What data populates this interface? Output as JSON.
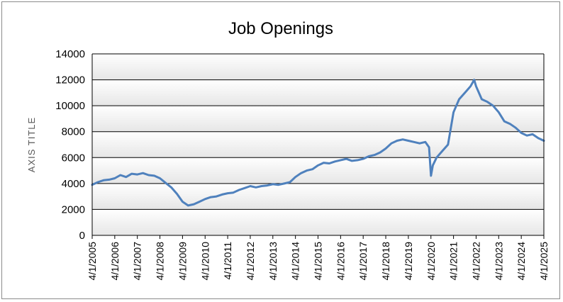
{
  "chart_data": {
    "type": "line",
    "title": "Job Openings",
    "ylabel": "AXIS TITLE",
    "xlabel": "",
    "xlim": [
      "2005-04-01",
      "2025-04-01"
    ],
    "ylim": [
      0,
      14000
    ],
    "yticks": [
      0,
      2000,
      4000,
      6000,
      8000,
      10000,
      12000,
      14000
    ],
    "ytick_labels": [
      "0",
      "2000",
      "4000",
      "6000",
      "8000",
      "10000",
      "12000",
      "14000"
    ],
    "xtick_labels": [
      "4/1/2005",
      "4/1/2006",
      "4/1/2007",
      "4/1/2008",
      "4/1/2009",
      "4/1/2010",
      "4/1/2011",
      "4/1/2012",
      "4/1/2013",
      "4/1/2014",
      "4/1/2015",
      "4/1/2016",
      "4/1/2017",
      "4/1/2018",
      "4/1/2019",
      "4/1/2020",
      "4/1/2021",
      "4/1/2022",
      "4/1/2023",
      "4/1/2024",
      "4/1/2025"
    ],
    "grid": true,
    "legend": "none",
    "series": [
      {
        "color": "#4f81bd",
        "x": [
          "2005-04-01",
          "2005-07-01",
          "2005-10-01",
          "2006-01-01",
          "2006-04-01",
          "2006-07-01",
          "2006-10-01",
          "2007-01-01",
          "2007-04-01",
          "2007-07-01",
          "2007-10-01",
          "2008-01-01",
          "2008-04-01",
          "2008-07-01",
          "2008-10-01",
          "2009-01-01",
          "2009-04-01",
          "2009-07-01",
          "2009-10-01",
          "2010-01-01",
          "2010-04-01",
          "2010-07-01",
          "2010-10-01",
          "2011-01-01",
          "2011-04-01",
          "2011-07-01",
          "2011-10-01",
          "2012-01-01",
          "2012-04-01",
          "2012-07-01",
          "2012-10-01",
          "2013-01-01",
          "2013-04-01",
          "2013-07-01",
          "2013-10-01",
          "2014-01-01",
          "2014-04-01",
          "2014-07-01",
          "2014-10-01",
          "2015-01-01",
          "2015-04-01",
          "2015-07-01",
          "2015-10-01",
          "2016-01-01",
          "2016-04-01",
          "2016-07-01",
          "2016-10-01",
          "2017-01-01",
          "2017-04-01",
          "2017-07-01",
          "2017-10-01",
          "2018-01-01",
          "2018-04-01",
          "2018-07-01",
          "2018-10-01",
          "2019-01-01",
          "2019-04-01",
          "2019-07-01",
          "2019-10-01",
          "2020-01-01",
          "2020-03-01",
          "2020-04-01",
          "2020-05-01",
          "2020-07-01",
          "2020-10-01",
          "2021-01-01",
          "2021-04-01",
          "2021-07-01",
          "2021-10-01",
          "2022-01-01",
          "2022-03-01",
          "2022-04-01",
          "2022-07-01",
          "2022-10-01",
          "2023-01-01",
          "2023-04-01",
          "2023-07-01",
          "2023-10-01",
          "2024-01-01",
          "2024-04-01",
          "2024-07-01",
          "2024-10-01",
          "2025-01-01",
          "2025-04-01"
        ],
        "y": [
          3900,
          4100,
          4250,
          4300,
          4400,
          4650,
          4500,
          4750,
          4700,
          4800,
          4650,
          4600,
          4400,
          4050,
          3700,
          3200,
          2600,
          2300,
          2400,
          2600,
          2800,
          2950,
          3000,
          3150,
          3250,
          3300,
          3500,
          3650,
          3800,
          3700,
          3800,
          3850,
          3950,
          3900,
          4000,
          4100,
          4500,
          4800,
          5000,
          5100,
          5400,
          5600,
          5550,
          5700,
          5800,
          5900,
          5750,
          5800,
          5900,
          6100,
          6200,
          6400,
          6700,
          7100,
          7300,
          7400,
          7300,
          7200,
          7100,
          7200,
          6800,
          4600,
          5400,
          6000,
          6500,
          7000,
          9500,
          10500,
          11000,
          11500,
          12000,
          11500,
          10500,
          10300,
          10000,
          9500,
          8800,
          8600,
          8300,
          7900,
          7700,
          7800,
          7500,
          7300
        ]
      }
    ]
  }
}
